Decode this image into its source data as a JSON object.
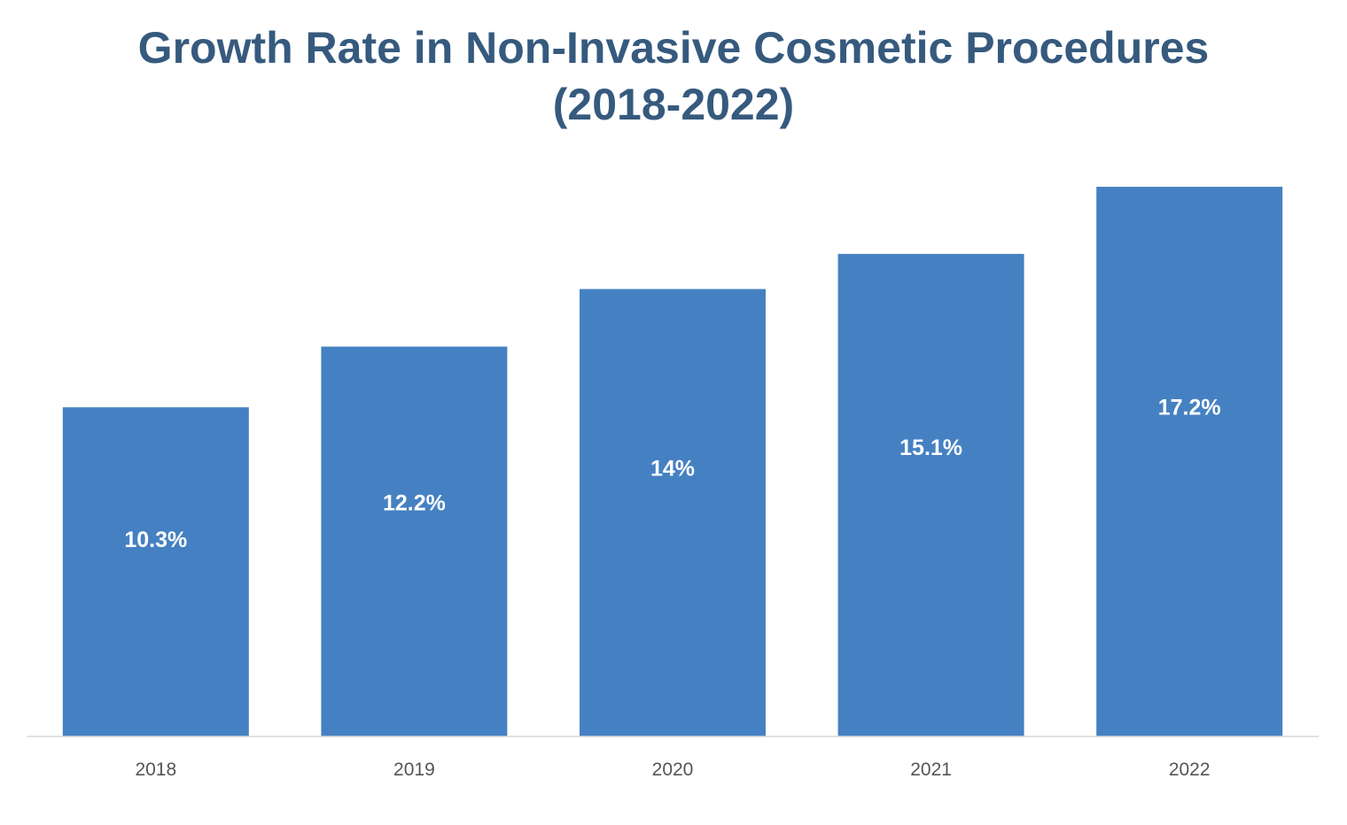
{
  "chart_data": {
    "type": "bar",
    "title_line1": "Growth Rate in Non-Invasive Cosmetic Procedures",
    "title_line2": "(2018-2022)",
    "categories": [
      "2018",
      "2019",
      "2020",
      "2021",
      "2022"
    ],
    "values": [
      10.3,
      12.2,
      14,
      15.1,
      17.2
    ],
    "value_labels": [
      "10.3%",
      "12.2%",
      "14%",
      "15.1%",
      "17.2%"
    ],
    "xlabel": "",
    "ylabel": "",
    "ylim": [
      0,
      17.2
    ],
    "grid": false,
    "legend": "none",
    "bar_color": "#4581c2",
    "title_color": "#365a7e"
  }
}
